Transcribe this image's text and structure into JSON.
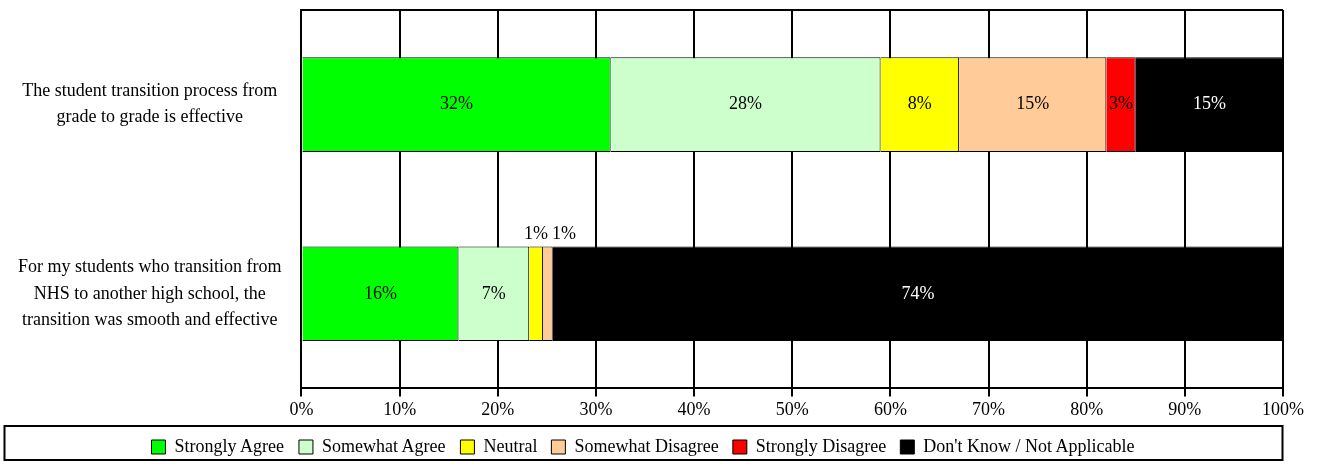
{
  "chart_data": {
    "type": "bar",
    "orientation": "horizontal",
    "stacked": true,
    "categories": [
      "The student transition process from grade to grade is effective",
      "For my students who transition from NHS to another high school, the transition was smooth and effective"
    ],
    "series": [
      {
        "name": "Strongly Agree",
        "color": "#00ff00",
        "values": [
          31.5,
          16
        ],
        "value_labels": [
          "32%",
          "16%"
        ]
      },
      {
        "name": "Somewhat Agree",
        "color": "#ccffcc",
        "values": [
          27.5,
          7.2
        ],
        "value_labels": [
          "28%",
          "7%"
        ]
      },
      {
        "name": "Neutral",
        "color": "#ffff00",
        "values": [
          8,
          1.4
        ],
        "value_labels": [
          "8%",
          "1%"
        ]
      },
      {
        "name": "Somewhat Disagree",
        "color": "#ffcc99",
        "values": [
          15,
          1
        ],
        "value_labels": [
          "15%",
          "1%"
        ]
      },
      {
        "name": "Strongly Disagree",
        "color": "#ff0000",
        "values": [
          3,
          0
        ],
        "value_labels": [
          "3%",
          null
        ]
      },
      {
        "name": "Don't Know / Not Applicable",
        "color": "#000000",
        "values": [
          15,
          74.4
        ],
        "value_labels": [
          "15%",
          "74%"
        ]
      }
    ],
    "xlim": [
      0,
      100
    ],
    "xticks": [
      {
        "value": 0,
        "label": "0%"
      },
      {
        "value": 10,
        "label": "10%"
      },
      {
        "value": 20,
        "label": "20%"
      },
      {
        "value": 30,
        "label": "30%"
      },
      {
        "value": 40,
        "label": "40%"
      },
      {
        "value": 50,
        "label": "50%"
      },
      {
        "value": 60,
        "label": "60%"
      },
      {
        "value": 70,
        "label": "70%"
      },
      {
        "value": 80,
        "label": "80%"
      },
      {
        "value": 90,
        "label": "90%"
      },
      {
        "value": 100,
        "label": "100%"
      }
    ],
    "grid": "x",
    "legend": "bottom"
  }
}
